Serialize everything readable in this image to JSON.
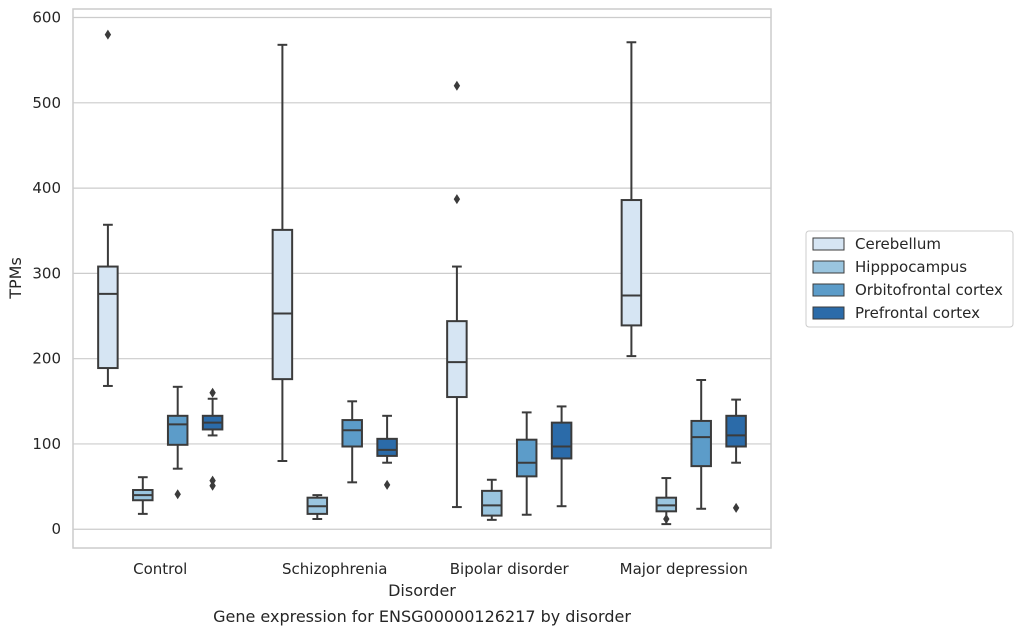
{
  "chart_data": {
    "type": "boxplot",
    "title": "",
    "caption": "Gene expression for ENSG00000126217 by disorder",
    "xlabel": "Disorder",
    "ylabel": "TPMs",
    "ylim": [
      -22,
      610
    ],
    "yticks": [
      0,
      100,
      200,
      300,
      400,
      500,
      600
    ],
    "grid": "horizontal",
    "legend_position": "right",
    "categories": [
      "Control",
      "Schizophrenia",
      "Bipolar disorder",
      "Major depression"
    ],
    "series": [
      {
        "name": "Cerebellum",
        "color": "#d6e5f3",
        "boxes": [
          {
            "whislo": 168,
            "q1": 189,
            "med": 276,
            "q3": 308,
            "whishi": 357,
            "fliers": [
              580
            ]
          },
          {
            "whislo": 80,
            "q1": 176,
            "med": 253,
            "q3": 351,
            "whishi": 568,
            "fliers": []
          },
          {
            "whislo": 26,
            "q1": 155,
            "med": 196,
            "q3": 244,
            "whishi": 308,
            "fliers": [
              520,
              387
            ]
          },
          {
            "whislo": 203,
            "q1": 239,
            "med": 274,
            "q3": 386,
            "whishi": 571,
            "fliers": []
          }
        ]
      },
      {
        "name": "Hipppocampus",
        "color": "#9ac5df",
        "boxes": [
          {
            "whislo": 18,
            "q1": 34,
            "med": 40,
            "q3": 46,
            "whishi": 61,
            "fliers": []
          },
          {
            "whislo": 12,
            "q1": 18,
            "med": 27,
            "q3": 37,
            "whishi": 40,
            "fliers": []
          },
          {
            "whislo": 11,
            "q1": 16,
            "med": 28,
            "q3": 45,
            "whishi": 58,
            "fliers": []
          },
          {
            "whislo": 6,
            "q1": 21,
            "med": 28,
            "q3": 37,
            "whishi": 60,
            "fliers": [
              12
            ]
          }
        ]
      },
      {
        "name": "Orbitofrontal cortex",
        "color": "#5c9cc9",
        "boxes": [
          {
            "whislo": 71,
            "q1": 99,
            "med": 123,
            "q3": 133,
            "whishi": 167,
            "fliers": [
              41
            ]
          },
          {
            "whislo": 55,
            "q1": 97,
            "med": 116,
            "q3": 128,
            "whishi": 150,
            "fliers": []
          },
          {
            "whislo": 17,
            "q1": 62,
            "med": 78,
            "q3": 105,
            "whishi": 137,
            "fliers": []
          },
          {
            "whislo": 24,
            "q1": 74,
            "med": 108,
            "q3": 127,
            "whishi": 175,
            "fliers": []
          }
        ]
      },
      {
        "name": "Prefrontal cortex",
        "color": "#2b6ba9",
        "boxes": [
          {
            "whislo": 110,
            "q1": 117,
            "med": 125,
            "q3": 133,
            "whishi": 153,
            "fliers": [
              160,
              57,
              51
            ]
          },
          {
            "whislo": 78,
            "q1": 86,
            "med": 93,
            "q3": 106,
            "whishi": 133,
            "fliers": [
              52
            ]
          },
          {
            "whislo": 27,
            "q1": 83,
            "med": 97,
            "q3": 125,
            "whishi": 144,
            "fliers": []
          },
          {
            "whislo": 78,
            "q1": 97,
            "med": 110,
            "q3": 133,
            "whishi": 152,
            "fliers": [
              25
            ]
          }
        ]
      }
    ]
  }
}
